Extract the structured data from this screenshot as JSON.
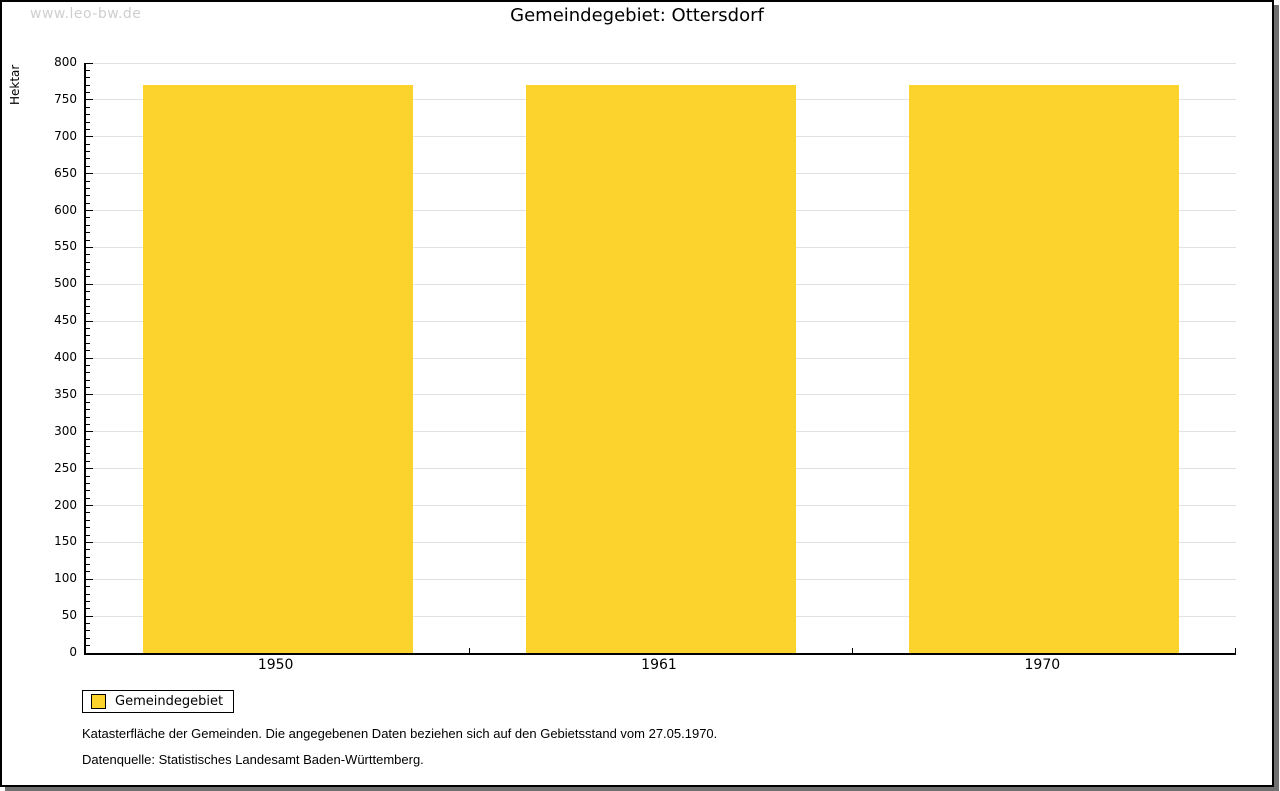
{
  "watermark": "www.leo-bw.de",
  "chart_data": {
    "type": "bar",
    "title": "Gemeindegebiet: Ottersdorf",
    "categories": [
      "1950",
      "1961",
      "1970"
    ],
    "series": [
      {
        "name": "Gemeindegebiet",
        "values": [
          770,
          770,
          770
        ]
      }
    ],
    "xlabel": "",
    "ylabel": "Hektar",
    "ylim": [
      0,
      800
    ],
    "ytick_step": 50,
    "minor_tick_step": 10,
    "ytick_labels": [
      "0",
      "50",
      "100",
      "150",
      "200",
      "250",
      "300",
      "350",
      "400",
      "450",
      "500",
      "550",
      "600",
      "650",
      "700",
      "750",
      "800"
    ],
    "grid": true,
    "legend_position": "bottom-left"
  },
  "legend": {
    "swatch_icon": "yellow-square-icon"
  },
  "footer": {
    "line1": "Katasterfläche der Gemeinden. Die angegebenen Daten beziehen sich auf den Gebietsstand vom 27.05.1970.",
    "line2": "Datenquelle: Statistisches Landesamt Baden-Württemberg."
  },
  "colors": {
    "bar": "#FCD32C",
    "grid": "#E1E1E1",
    "axis": "#000000",
    "watermark": "#CFCFCF",
    "frame_shadow": "#707070"
  }
}
